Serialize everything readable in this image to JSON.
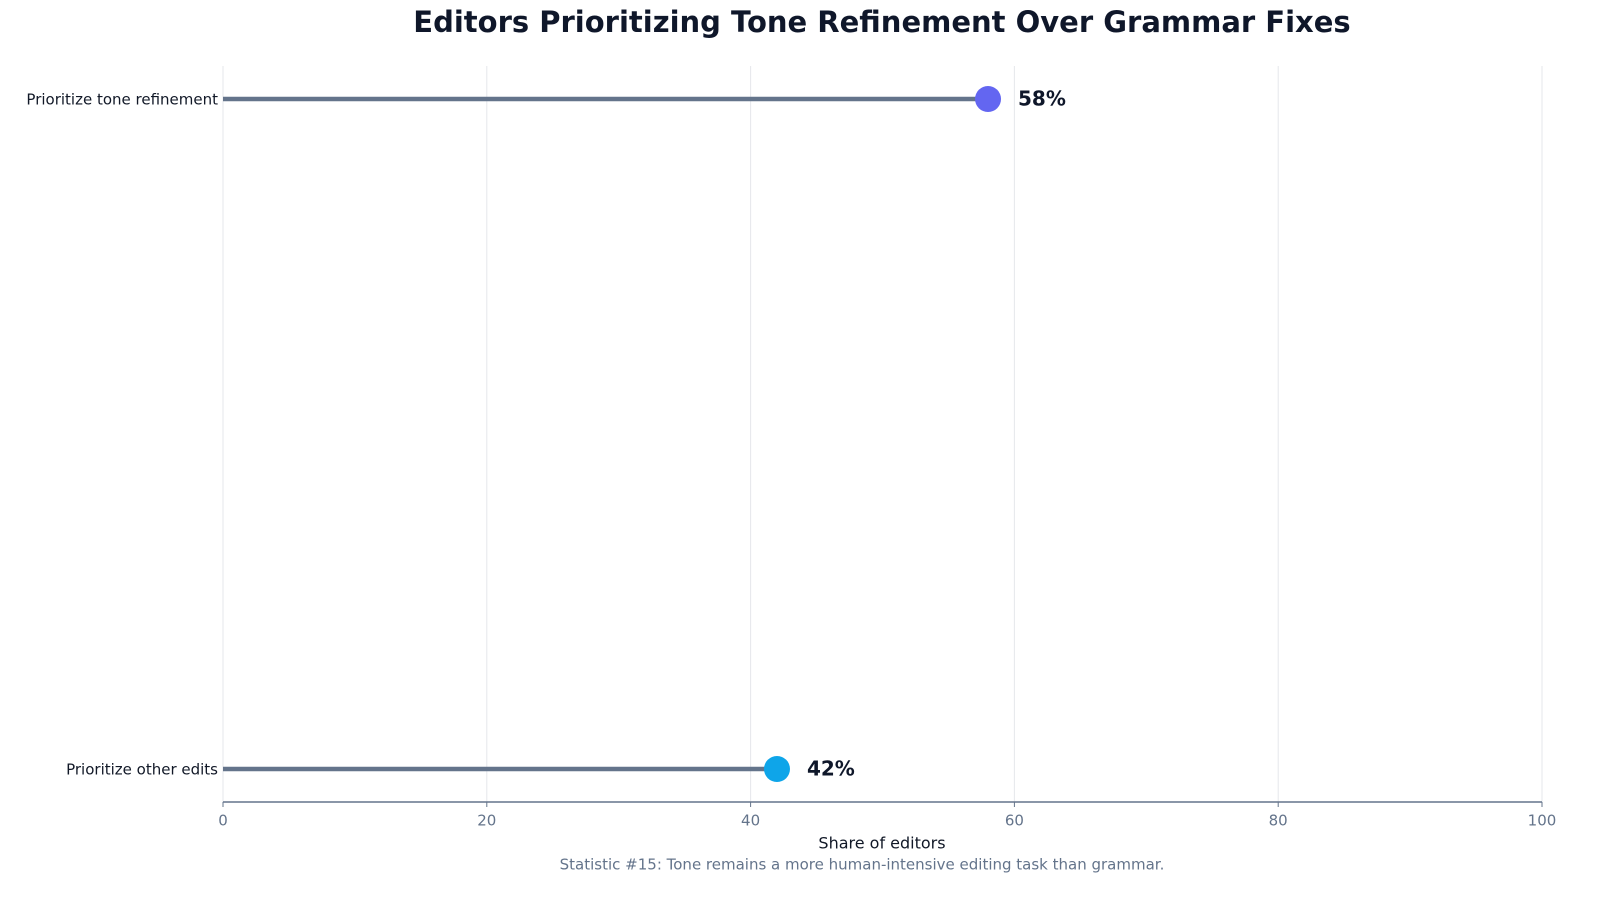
{
  "chart_data": {
    "type": "lollipop",
    "title": "Editors Prioritizing Tone Refinement Over Grammar Fixes",
    "xlabel": "Share of editors",
    "caption": "Statistic #15: Tone remains a more human-intensive editing task than grammar.",
    "categories": [
      "Prioritize tone refinement",
      "Prioritize other edits"
    ],
    "values": [
      58,
      42
    ],
    "value_labels": [
      "58%",
      "42%"
    ],
    "colors": [
      "#6366f1",
      "#0ea5e9"
    ],
    "stem_color": "#64748b",
    "xlim": [
      0,
      100
    ],
    "xticks": [
      0,
      20,
      40,
      60,
      80,
      100
    ],
    "grid": true
  }
}
